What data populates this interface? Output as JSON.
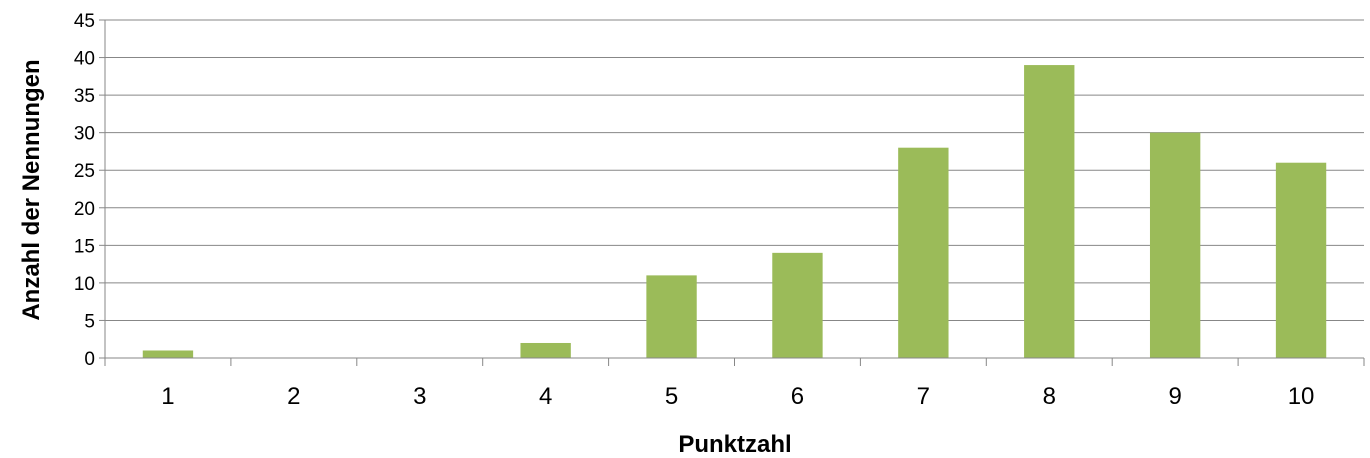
{
  "chart_data": {
    "type": "bar",
    "title": "",
    "xlabel": "Punktzahl",
    "ylabel": "Anzahl der Nennungen",
    "categories": [
      "1",
      "2",
      "3",
      "4",
      "5",
      "6",
      "7",
      "8",
      "9",
      "10"
    ],
    "values": [
      1,
      0,
      0,
      2,
      11,
      14,
      28,
      39,
      30,
      26
    ],
    "ylim": [
      0,
      45
    ],
    "yticks": [
      0,
      5,
      10,
      15,
      20,
      25,
      30,
      35,
      40,
      45
    ],
    "grid": true,
    "legend": "none",
    "colors": {
      "bar": "#9BBB59",
      "grid": "#878787",
      "axis": "#878787"
    }
  }
}
